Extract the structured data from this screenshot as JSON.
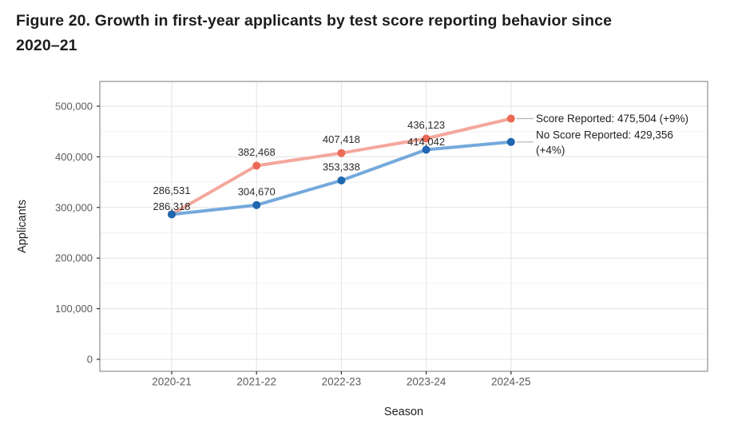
{
  "figure": {
    "title_lines": [
      "Figure 20. Growth in first-year applicants by test score reporting behavior since",
      "2020–21"
    ]
  },
  "chart_data": {
    "type": "line",
    "title": "Figure 20. Growth in first-year applicants by test score reporting behavior since 2020–21",
    "xlabel": "Season",
    "ylabel": "Applicants",
    "categories": [
      "2020-21",
      "2021-22",
      "2022-23",
      "2023-24",
      "2024-25"
    ],
    "ylim": [
      0,
      500000
    ],
    "yticks": [
      0,
      100000,
      200000,
      300000,
      400000,
      500000
    ],
    "ytick_labels": [
      "0",
      "100,000",
      "200,000",
      "300,000",
      "400,000",
      "500,000"
    ],
    "grid": true,
    "legend_position": "end-of-line annotations, right side",
    "series": [
      {
        "name": "Score Reported",
        "values": [
          286531,
          382468,
          407418,
          436123,
          475504
        ],
        "value_labels": [
          "286,531",
          "382,468",
          "407,418",
          "436,123"
        ],
        "end_label_lines": [
          "Score Reported: 475,504 (+9%)"
        ],
        "line_color": "#f4a79c",
        "point_color": "#eb6a55"
      },
      {
        "name": "No Score Reported",
        "values": [
          286318,
          304670,
          353338,
          414042,
          429356
        ],
        "value_labels": [
          "286,318",
          "304,670",
          "353,338",
          "414,042"
        ],
        "end_label_lines": [
          "No Score Reported: 429,356",
          "(+4%)"
        ],
        "line_color": "#74a9db",
        "point_color": "#1f67b1"
      }
    ],
    "colors": {
      "grid_major": "#e3e3e3",
      "grid_minor": "#f2f2f2",
      "panel_border": "#8f8f8f",
      "tick_label": "#5a5a5a",
      "axis_title": "#1f1f1f",
      "value_label": "#2b2b2b",
      "annotation_text": "#1f1f1f",
      "connector": "#b3b3b3"
    }
  }
}
